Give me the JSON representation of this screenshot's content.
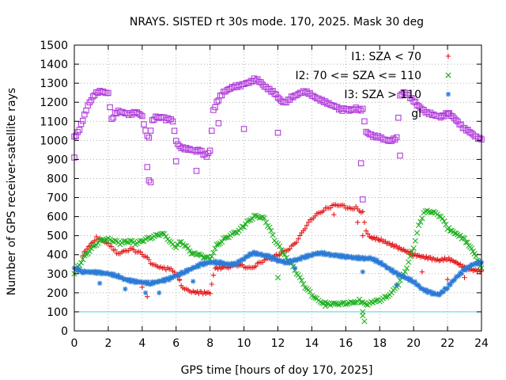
{
  "chart_data": {
    "type": "scatter",
    "title": "NRAYS. SISTED rt 30s mode. 170, 2025. Mask 30 deg",
    "xlabel": "GPS time [hours of doy 170, 2025]",
    "ylabel": "Number of GPS receiver-satellite rays",
    "xlim": [
      0,
      24
    ],
    "ylim": [
      0,
      1500
    ],
    "xticks": [
      0,
      2,
      4,
      6,
      8,
      10,
      12,
      14,
      16,
      18,
      20,
      22,
      24
    ],
    "yticks": [
      0,
      100,
      200,
      300,
      400,
      500,
      600,
      700,
      800,
      900,
      1000,
      1100,
      1200,
      1300,
      1400,
      1500
    ],
    "grid": true,
    "legend_position": "top-right",
    "threshold_line": {
      "y": 100,
      "color": "#4fd8e8"
    },
    "series": [
      {
        "name": "I1: SZA < 70",
        "marker": "plus",
        "color": "#e41a1c",
        "x": [
          0.5,
          1.0,
          1.3,
          1.5,
          1.8,
          2.0,
          2.2,
          2.4,
          2.6,
          2.8,
          3.0,
          3.3,
          3.6,
          3.9,
          4.2,
          4.5,
          4.8,
          5.0,
          5.2,
          5.4,
          5.6,
          5.8,
          6.0,
          6.3,
          6.6,
          7.0,
          7.5,
          8.0,
          8.3,
          8.8,
          9.2,
          9.6,
          10.0,
          10.4,
          10.8,
          11.2,
          11.6,
          12.0,
          12.4,
          12.8,
          13.2,
          13.6,
          14.0,
          14.4,
          14.8,
          15.2,
          15.6,
          16.0,
          16.3,
          16.6,
          17.0,
          17.2,
          17.5,
          18.0,
          18.5,
          19.0,
          19.5,
          20.0,
          20.5,
          21.0,
          21.5,
          22.0,
          22.5,
          23.0,
          23.5,
          24.0
        ],
        "y": [
          400,
          460,
          490,
          480,
          470,
          460,
          440,
          420,
          400,
          410,
          420,
          430,
          420,
          410,
          390,
          360,
          340,
          330,
          330,
          325,
          330,
          320,
          300,
          240,
          215,
          205,
          200,
          200,
          330,
          330,
          335,
          345,
          340,
          330,
          350,
          370,
          380,
          400,
          420,
          440,
          480,
          540,
          590,
          620,
          640,
          655,
          660,
          650,
          640,
          650,
          620,
          520,
          490,
          480,
          460,
          440,
          420,
          400,
          390,
          380,
          370,
          380,
          360,
          330,
          320,
          315
        ]
      },
      {
        "name": "I2: 70 <= SZA <= 110",
        "marker": "cross",
        "color": "#1fb01f",
        "x": [
          0.0,
          0.3,
          0.6,
          0.9,
          1.2,
          1.5,
          1.8,
          2.1,
          2.4,
          2.7,
          3.0,
          3.3,
          3.6,
          3.9,
          4.2,
          4.5,
          4.8,
          5.1,
          5.4,
          5.7,
          6.0,
          6.3,
          6.6,
          6.9,
          7.2,
          7.6,
          8.0,
          8.4,
          8.8,
          9.2,
          9.6,
          10.0,
          10.3,
          10.6,
          10.9,
          11.2,
          11.5,
          11.8,
          12.1,
          12.4,
          12.8,
          13.2,
          13.6,
          14.0,
          14.4,
          14.8,
          15.2,
          15.6,
          16.0,
          16.4,
          16.8,
          17.0,
          17.3,
          17.6,
          18.0,
          18.4,
          18.8,
          19.2,
          19.6,
          20.0,
          20.3,
          20.6,
          20.9,
          21.2,
          21.6,
          22.0,
          22.5,
          23.0,
          23.5,
          24.0
        ],
        "y": [
          300,
          350,
          390,
          420,
          450,
          470,
          480,
          480,
          470,
          460,
          470,
          470,
          460,
          470,
          480,
          490,
          500,
          510,
          500,
          460,
          440,
          470,
          440,
          410,
          400,
          390,
          380,
          450,
          480,
          500,
          520,
          550,
          580,
          600,
          600,
          590,
          540,
          480,
          440,
          400,
          350,
          290,
          230,
          190,
          160,
          145,
          140,
          140,
          145,
          150,
          160,
          145,
          140,
          150,
          160,
          180,
          210,
          260,
          330,
          440,
          550,
          620,
          630,
          620,
          600,
          540,
          510,
          480,
          420,
          330
        ]
      },
      {
        "name": "I3: SZA > 110",
        "marker": "star",
        "color": "#2b7bd6",
        "x": [
          0.0,
          0.5,
          1.0,
          1.5,
          2.0,
          2.5,
          3.0,
          3.5,
          4.0,
          4.5,
          5.0,
          5.5,
          6.0,
          6.5,
          7.0,
          7.5,
          8.0,
          8.5,
          9.0,
          9.5,
          10.0,
          10.5,
          11.0,
          11.5,
          12.0,
          12.5,
          13.0,
          13.5,
          14.0,
          14.5,
          15.0,
          15.5,
          16.0,
          16.5,
          17.0,
          17.5,
          18.0,
          18.5,
          19.0,
          19.5,
          20.0,
          20.5,
          21.0,
          21.5,
          22.0,
          22.5,
          23.0,
          23.5,
          24.0
        ],
        "y": [
          330,
          310,
          310,
          305,
          300,
          290,
          270,
          260,
          255,
          250,
          260,
          270,
          290,
          310,
          330,
          350,
          360,
          360,
          350,
          350,
          380,
          410,
          400,
          390,
          370,
          360,
          370,
          385,
          400,
          410,
          400,
          395,
          390,
          385,
          380,
          380,
          360,
          330,
          300,
          280,
          260,
          220,
          200,
          190,
          230,
          280,
          320,
          350,
          360
        ]
      },
      {
        "name": "gl",
        "marker": "square",
        "color": "#b23ddc",
        "x": [
          0.0,
          0.2,
          0.4,
          0.6,
          0.8,
          1.0,
          1.2,
          1.4,
          1.6,
          1.8,
          2.0,
          2.2,
          2.4,
          2.6,
          2.8,
          3.0,
          3.2,
          3.4,
          3.6,
          3.8,
          4.0,
          4.2,
          4.4,
          4.6,
          4.8,
          5.0,
          5.2,
          5.4,
          5.6,
          5.8,
          6.0,
          6.2,
          6.4,
          6.6,
          6.8,
          7.0,
          7.2,
          7.4,
          7.6,
          7.8,
          8.0,
          8.2,
          8.4,
          8.6,
          8.8,
          9.0,
          9.2,
          9.4,
          9.6,
          9.8,
          10.0,
          10.2,
          10.4,
          10.6,
          10.8,
          11.0,
          11.2,
          11.4,
          11.6,
          11.8,
          12.0,
          12.2,
          12.4,
          12.6,
          12.8,
          13.0,
          13.2,
          13.4,
          13.6,
          13.8,
          14.0,
          14.2,
          14.4,
          14.6,
          14.8,
          15.0,
          15.2,
          15.4,
          15.6,
          15.8,
          16.0,
          16.2,
          16.4,
          16.6,
          16.8,
          17.0,
          17.2,
          17.4,
          17.6,
          17.8,
          18.0,
          18.2,
          18.4,
          18.6,
          18.8,
          19.0,
          19.2,
          19.4,
          19.6,
          19.8,
          20.0,
          20.2,
          20.4,
          20.6,
          20.8,
          21.0,
          21.2,
          21.4,
          21.6,
          21.8,
          22.0,
          22.2,
          22.4,
          22.6,
          22.8,
          23.0,
          23.2,
          23.4,
          23.6,
          23.8,
          24.0
        ],
        "y": [
          1020,
          1040,
          1080,
          1130,
          1180,
          1210,
          1240,
          1255,
          1260,
          1255,
          1250,
          1110,
          1140,
          1150,
          1145,
          1140,
          1135,
          1140,
          1150,
          1145,
          1130,
          1050,
          1010,
          1100,
          1120,
          1115,
          1120,
          1110,
          1115,
          1105,
          1000,
          970,
          960,
          955,
          950,
          945,
          940,
          950,
          930,
          920,
          950,
          1160,
          1200,
          1230,
          1250,
          1260,
          1270,
          1280,
          1285,
          1290,
          1300,
          1305,
          1310,
          1320,
          1315,
          1300,
          1280,
          1270,
          1260,
          1250,
          1230,
          1210,
          1200,
          1210,
          1225,
          1230,
          1240,
          1250,
          1255,
          1250,
          1240,
          1230,
          1220,
          1210,
          1200,
          1190,
          1180,
          1175,
          1165,
          1160,
          1170,
          1160,
          1165,
          1170,
          1160,
          1160,
          1040,
          1030,
          1020,
          1020,
          1020,
          1010,
          1005,
          1000,
          1005,
          1010,
          1230,
          1250,
          1240,
          1225,
          1210,
          1190,
          1175,
          1160,
          1145,
          1140,
          1130,
          1125,
          1120,
          1130,
          1145,
          1135,
          1120,
          1100,
          1080,
          1060,
          1050,
          1035,
          1020,
          1010,
          1005
        ]
      }
    ],
    "outliers": [
      {
        "series": "gl",
        "x": [
          0.0,
          4.3,
          4.4,
          4.5,
          6.0,
          7.2,
          8.5,
          10.0,
          12.0,
          16.9,
          17.0,
          19.2
        ],
        "y": [
          910,
          860,
          790,
          780,
          890,
          840,
          1090,
          1060,
          1040,
          880,
          690,
          920
        ]
      },
      {
        "series": "I1: SZA < 70",
        "x": [
          4.0,
          4.3,
          6.2,
          15.3,
          16.7,
          17.0,
          20.5,
          22.0,
          23.0
        ],
        "y": [
          230,
          180,
          270,
          610,
          570,
          500,
          310,
          270,
          280
        ]
      },
      {
        "series": "I2: 70 <= SZA <= 110",
        "x": [
          12.0,
          14.8,
          17.0,
          17.1,
          17.0
        ],
        "y": [
          280,
          130,
          100,
          50,
          80
        ]
      },
      {
        "series": "I3: SZA > 110",
        "x": [
          1.5,
          3.0,
          4.2,
          5.0,
          7.0,
          13.0,
          17.0,
          19.0
        ],
        "y": [
          250,
          220,
          200,
          200,
          260,
          330,
          310,
          240
        ]
      }
    ]
  }
}
